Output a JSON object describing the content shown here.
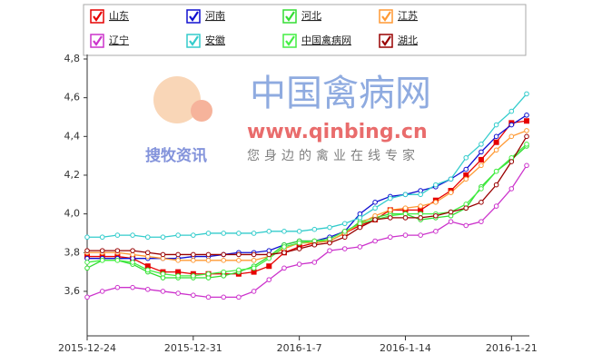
{
  "chart_data": {
    "type": "line",
    "categories": [
      "2015-12-24",
      null,
      null,
      null,
      null,
      null,
      null,
      "2015-12-31",
      null,
      null,
      null,
      null,
      null,
      null,
      "2016-1-7",
      null,
      null,
      null,
      null,
      null,
      null,
      "2016-1-14",
      null,
      null,
      null,
      null,
      null,
      null,
      "2016-1-21",
      null
    ],
    "ylim": [
      3.37,
      4.8
    ],
    "yticks": [
      {
        "value": 3.6,
        "label": "3,6"
      },
      {
        "value": 3.8,
        "label": "3,8"
      },
      {
        "value": 4.0,
        "label": "4,0"
      },
      {
        "value": 4.2,
        "label": "4,2"
      },
      {
        "value": 4.4,
        "label": "4,4"
      },
      {
        "value": 4.6,
        "label": "4,6"
      },
      {
        "value": 4.8,
        "label": "4,8"
      }
    ],
    "grid": false,
    "watermark": {
      "site": "中国禽病网",
      "url": "www.qinbing.cn",
      "brand": "搜牧资讯",
      "slogan": "您身边的禽业在线专家"
    },
    "series": [
      {
        "name": "山东",
        "color": "#e60000",
        "marker": "square",
        "values": [
          3.78,
          3.78,
          3.78,
          3.77,
          3.73,
          3.7,
          3.7,
          3.69,
          3.69,
          3.69,
          3.69,
          3.7,
          3.73,
          3.8,
          3.83,
          3.85,
          3.86,
          3.9,
          3.94,
          3.97,
          4.02,
          4.02,
          4.02,
          4.07,
          4.12,
          4.2,
          4.28,
          4.37,
          4.47,
          4.48
        ]
      },
      {
        "name": "河南",
        "color": "#1010d0",
        "marker": "circle",
        "values": [
          3.77,
          3.77,
          3.77,
          3.77,
          3.77,
          3.77,
          3.77,
          3.78,
          3.78,
          3.79,
          3.8,
          3.8,
          3.81,
          3.84,
          3.86,
          3.86,
          3.88,
          3.91,
          4.0,
          4.06,
          4.09,
          4.1,
          4.12,
          4.14,
          4.18,
          4.23,
          4.32,
          4.4,
          4.46,
          4.51
        ]
      },
      {
        "name": "河北",
        "color": "#33dd33",
        "marker": "circle",
        "values": [
          3.72,
          3.76,
          3.76,
          3.74,
          3.7,
          3.67,
          3.67,
          3.67,
          3.67,
          3.68,
          3.7,
          3.73,
          3.78,
          3.84,
          3.86,
          3.86,
          3.86,
          3.9,
          3.96,
          3.98,
          4.0,
          4.0,
          3.97,
          3.98,
          3.99,
          4.03,
          4.14,
          4.22,
          4.28,
          4.35
        ]
      },
      {
        "name": "江苏",
        "color": "#ff9933",
        "marker": "circle",
        "values": [
          3.8,
          3.8,
          3.8,
          3.79,
          3.78,
          3.77,
          3.76,
          3.76,
          3.76,
          3.76,
          3.76,
          3.76,
          3.78,
          3.82,
          3.85,
          3.85,
          3.86,
          3.9,
          3.95,
          3.99,
          4.02,
          4.03,
          4.04,
          4.06,
          4.11,
          4.18,
          4.25,
          4.33,
          4.4,
          4.43
        ]
      },
      {
        "name": "辽宁",
        "color": "#cc33cc",
        "marker": "circle",
        "values": [
          3.57,
          3.6,
          3.62,
          3.62,
          3.61,
          3.6,
          3.59,
          3.58,
          3.57,
          3.57,
          3.57,
          3.6,
          3.66,
          3.72,
          3.74,
          3.75,
          3.81,
          3.82,
          3.83,
          3.86,
          3.88,
          3.89,
          3.89,
          3.91,
          3.96,
          3.94,
          3.96,
          4.04,
          4.13,
          4.25
        ]
      },
      {
        "name": "安徽",
        "color": "#33cccc",
        "marker": "circle",
        "values": [
          3.88,
          3.88,
          3.89,
          3.89,
          3.88,
          3.88,
          3.89,
          3.89,
          3.9,
          3.9,
          3.9,
          3.9,
          3.91,
          3.91,
          3.91,
          3.92,
          3.93,
          3.95,
          3.98,
          4.03,
          4.08,
          4.1,
          4.1,
          4.15,
          4.18,
          4.29,
          4.36,
          4.46,
          4.53,
          4.62
        ]
      },
      {
        "name": "中国禽病网",
        "color": "#44ee44",
        "marker": "circle",
        "values": [
          3.75,
          3.76,
          3.76,
          3.75,
          3.71,
          3.69,
          3.68,
          3.68,
          3.69,
          3.7,
          3.71,
          3.72,
          3.77,
          3.83,
          3.85,
          3.86,
          3.87,
          3.91,
          3.95,
          3.97,
          3.99,
          4.0,
          4.0,
          4.0,
          4.01,
          4.05,
          4.13,
          4.22,
          4.29,
          4.36
        ]
      },
      {
        "name": "湖北",
        "color": "#990000",
        "marker": "circle",
        "values": [
          3.81,
          3.81,
          3.81,
          3.81,
          3.8,
          3.79,
          3.79,
          3.79,
          3.79,
          3.79,
          3.79,
          3.79,
          3.79,
          3.8,
          3.82,
          3.84,
          3.85,
          3.88,
          3.93,
          3.97,
          3.98,
          3.98,
          3.98,
          3.99,
          4.01,
          4.03,
          4.06,
          4.15,
          4.27,
          4.4
        ]
      }
    ]
  }
}
